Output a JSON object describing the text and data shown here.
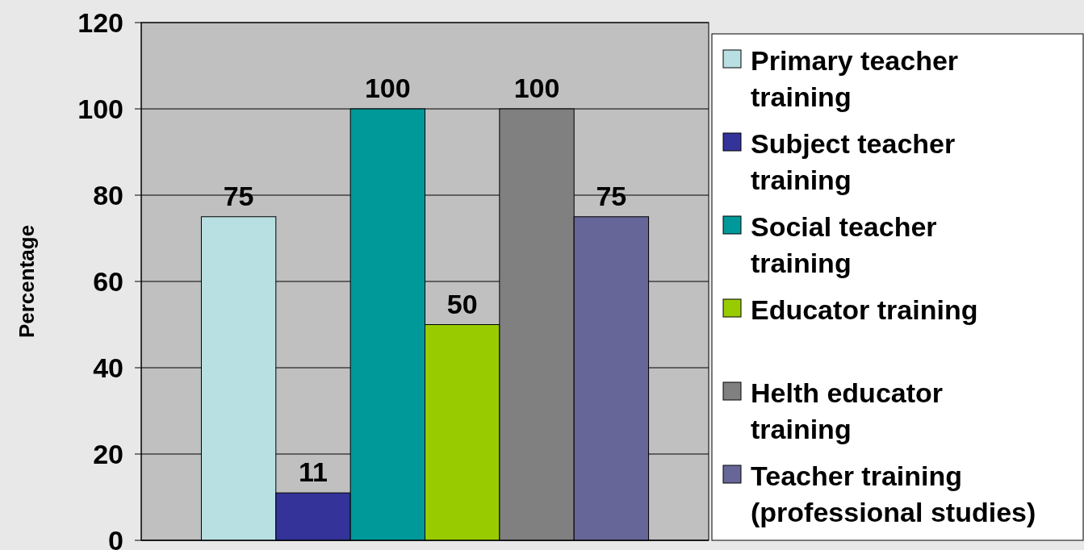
{
  "chart_data": {
    "type": "bar",
    "ylabel": "Percentage",
    "categories": [
      null
    ],
    "series": [
      {
        "name": "Primary teacher training",
        "color": "#b8e0e3",
        "values": [
          75
        ]
      },
      {
        "name": "Subject teacher training",
        "color": "#333399",
        "values": [
          11
        ]
      },
      {
        "name": "Social teacher training",
        "color": "#009999",
        "values": [
          100
        ]
      },
      {
        "name": "Educator training",
        "color": "#99cc00",
        "values": [
          50
        ]
      },
      {
        "name": "Helth educator training",
        "color": "#808080",
        "values": [
          100
        ]
      },
      {
        "name": "Teacher training (professional studies)",
        "color": "#666699",
        "values": [
          75
        ]
      }
    ],
    "ylim": [
      0,
      120
    ],
    "yticks": [
      0,
      20,
      40,
      60,
      80,
      100,
      120
    ],
    "grid": "y",
    "legend": "right",
    "data_labels": true
  }
}
